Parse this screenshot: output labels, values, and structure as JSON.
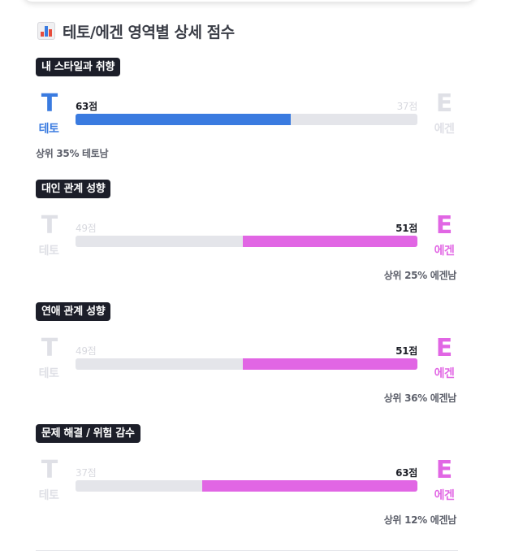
{
  "title": "테토/에겐 영역별 상세 점수",
  "title_icon": "bar-chart-icon",
  "colors": {
    "teto": "#3a7be0",
    "egen": "#e166e4",
    "dim": "#dfe0e6",
    "track": "#e4e5ea"
  },
  "sections": [
    {
      "tag": "내 스타일과 취향",
      "left_letter": "T",
      "left_label": "테토",
      "left_score": "63점",
      "right_letter": "E",
      "right_label": "에겐",
      "right_score": "37점",
      "winner": "teto",
      "teto_fraction": 0.63,
      "rank": "상위 35% 테토남"
    },
    {
      "tag": "대인 관계 성향",
      "left_letter": "T",
      "left_label": "테토",
      "left_score": "49점",
      "right_letter": "E",
      "right_label": "에겐",
      "right_score": "51점",
      "winner": "egen",
      "teto_fraction": 0.49,
      "rank": "상위 25% 에겐남"
    },
    {
      "tag": "연애 관계 성향",
      "left_letter": "T",
      "left_label": "테토",
      "left_score": "49점",
      "right_letter": "E",
      "right_label": "에겐",
      "right_score": "51점",
      "winner": "egen",
      "teto_fraction": 0.49,
      "rank": "상위 36% 에겐남"
    },
    {
      "tag": "문제 해결 / 위험 감수",
      "left_letter": "T",
      "left_label": "테토",
      "left_score": "37점",
      "right_letter": "E",
      "right_label": "에겐",
      "right_score": "63점",
      "winner": "egen",
      "teto_fraction": 0.37,
      "rank": "상위 12% 에겐남"
    }
  ]
}
